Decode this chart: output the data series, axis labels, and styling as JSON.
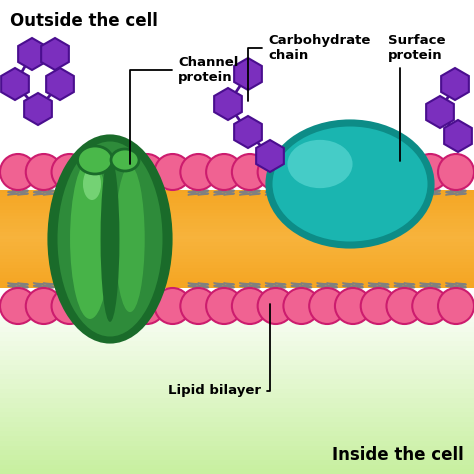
{
  "phospholipid_head_color": "#f06292",
  "phospholipid_head_outline": "#cc1c6e",
  "phospholipid_tail_color": "#808080",
  "lipid_orange": "#f5a623",
  "channel_protein_dark": "#1a6b2a",
  "channel_protein_mid": "#2e8b3a",
  "channel_protein_light": "#4ab84a",
  "channel_protein_highlight": "#7dd87d",
  "surface_protein_main": "#1ab5b0",
  "surface_protein_dark": "#0d8c87",
  "surface_protein_highlight": "#5dd9d4",
  "carbohydrate_fill": "#7b2fbe",
  "carbohydrate_outline": "#4a0e8f",
  "outside_label": "Outside the cell",
  "inside_label": "Inside the cell",
  "channel_label": "Channel\nprotein",
  "carbohydrate_label": "Carbohydrate\nchain",
  "surface_label": "Surface\nprotein",
  "lipid_label": "Lipid bilayer",
  "bg_green": "#b8e090"
}
